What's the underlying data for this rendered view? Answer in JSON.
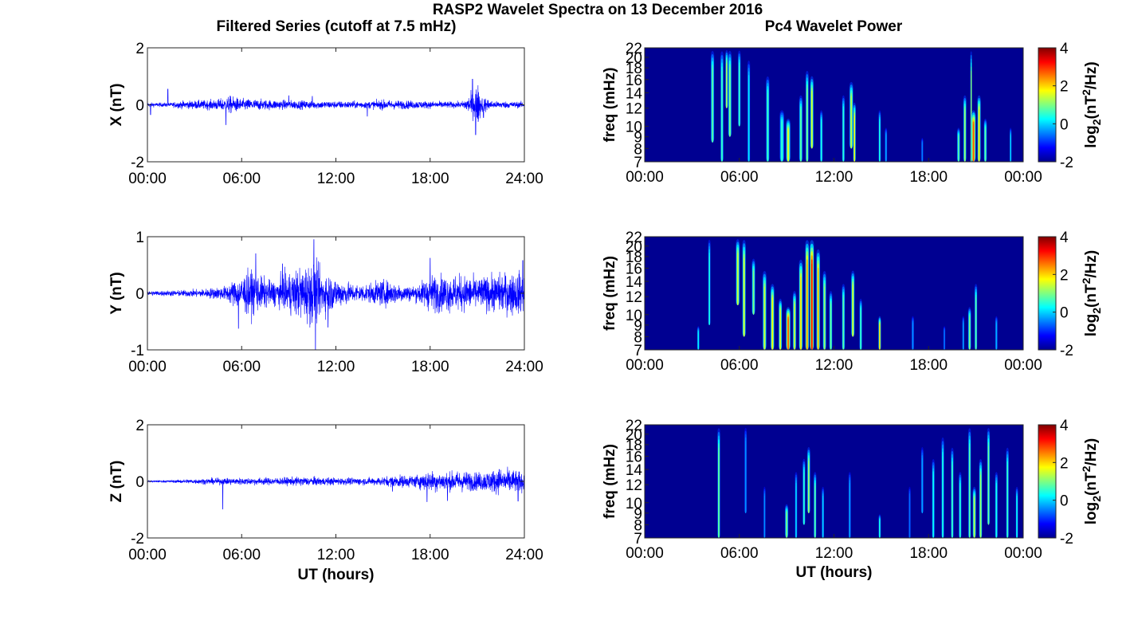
{
  "figure": {
    "title": "RASP2 Wavelet Spectra on 13 December 2016",
    "left_column_title": "Filtered Series (cutoff at 7.5 mHz)",
    "right_column_title": "Pc4 Wavelet Power"
  },
  "chart_data": [
    {
      "type": "line",
      "component": "X",
      "ylabel": "X (nT)",
      "xlabel": "",
      "xlim": [
        0,
        24
      ],
      "ylim": [
        -2,
        2
      ],
      "x_ticks": [
        "00:00",
        "06:00",
        "12:00",
        "18:00",
        "24:00"
      ],
      "y_ticks": [
        "-2",
        "0",
        "2"
      ],
      "color": "#0000ff",
      "envelope": [
        [
          0,
          0.07
        ],
        [
          1.5,
          0.07
        ],
        [
          2.0,
          0.12
        ],
        [
          4.0,
          0.16
        ],
        [
          5.0,
          0.22
        ],
        [
          5.2,
          0.3
        ],
        [
          6.0,
          0.2
        ],
        [
          8.0,
          0.16
        ],
        [
          10.0,
          0.14
        ],
        [
          12.0,
          0.12
        ],
        [
          14.0,
          0.12
        ],
        [
          15.0,
          0.16
        ],
        [
          18.0,
          0.12
        ],
        [
          20.0,
          0.1
        ],
        [
          20.8,
          0.45
        ],
        [
          21.0,
          0.75
        ],
        [
          21.3,
          0.3
        ],
        [
          22.0,
          0.12
        ],
        [
          24.0,
          0.1
        ]
      ],
      "spikes": [
        [
          0.2,
          -0.35
        ],
        [
          1.3,
          0.55
        ],
        [
          5.0,
          -0.7
        ],
        [
          9.0,
          0.32
        ],
        [
          10.5,
          0.3
        ],
        [
          14.0,
          -0.4
        ],
        [
          20.7,
          0.9
        ],
        [
          20.9,
          -1.05
        ],
        [
          21.4,
          -0.45
        ]
      ]
    },
    {
      "type": "line",
      "component": "Y",
      "ylabel": "Y (nT)",
      "xlabel": "",
      "xlim": [
        0,
        24
      ],
      "ylim": [
        -1,
        1
      ],
      "x_ticks": [
        "00:00",
        "06:00",
        "12:00",
        "18:00",
        "24:00"
      ],
      "y_ticks": [
        "-1",
        "0",
        "1"
      ],
      "color": "#0000ff",
      "envelope": [
        [
          0,
          0.04
        ],
        [
          2.0,
          0.05
        ],
        [
          3.5,
          0.07
        ],
        [
          5.0,
          0.12
        ],
        [
          5.5,
          0.22
        ],
        [
          6.0,
          0.3
        ],
        [
          6.5,
          0.38
        ],
        [
          7.0,
          0.3
        ],
        [
          8.0,
          0.2
        ],
        [
          9.0,
          0.35
        ],
        [
          10.0,
          0.45
        ],
        [
          10.5,
          0.55
        ],
        [
          11.0,
          0.4
        ],
        [
          12.0,
          0.25
        ],
        [
          13.0,
          0.16
        ],
        [
          14.0,
          0.15
        ],
        [
          15.0,
          0.22
        ],
        [
          16.0,
          0.16
        ],
        [
          17.0,
          0.12
        ],
        [
          18.0,
          0.3
        ],
        [
          19.0,
          0.3
        ],
        [
          20.0,
          0.3
        ],
        [
          21.0,
          0.26
        ],
        [
          22.0,
          0.3
        ],
        [
          23.0,
          0.35
        ],
        [
          24.0,
          0.35
        ]
      ],
      "spikes": [
        [
          5.8,
          -0.62
        ],
        [
          6.9,
          0.7
        ],
        [
          10.6,
          0.95
        ],
        [
          10.7,
          -1.0
        ],
        [
          8.6,
          0.52
        ],
        [
          11.5,
          -0.6
        ],
        [
          18.0,
          0.62
        ],
        [
          23.9,
          0.58
        ]
      ]
    },
    {
      "type": "line",
      "component": "Z",
      "ylabel": "Z (nT)",
      "xlabel": "UT (hours)",
      "xlim": [
        0,
        24
      ],
      "ylim": [
        -2,
        2
      ],
      "x_ticks": [
        "00:00",
        "06:00",
        "12:00",
        "18:00",
        "24:00"
      ],
      "y_ticks": [
        "-2",
        "0",
        "2"
      ],
      "color": "#0000ff",
      "envelope": [
        [
          0,
          0.03
        ],
        [
          1.5,
          0.04
        ],
        [
          2.5,
          0.07
        ],
        [
          4.0,
          0.1
        ],
        [
          6.0,
          0.12
        ],
        [
          8.0,
          0.12
        ],
        [
          10.0,
          0.15
        ],
        [
          12.0,
          0.12
        ],
        [
          14.0,
          0.12
        ],
        [
          15.0,
          0.15
        ],
        [
          16.0,
          0.2
        ],
        [
          17.0,
          0.2
        ],
        [
          18.0,
          0.35
        ],
        [
          19.0,
          0.3
        ],
        [
          20.0,
          0.35
        ],
        [
          21.0,
          0.3
        ],
        [
          22.0,
          0.38
        ],
        [
          23.0,
          0.42
        ],
        [
          24.0,
          0.32
        ]
      ],
      "spikes": [
        [
          4.8,
          -0.98
        ],
        [
          15.6,
          -0.35
        ],
        [
          17.8,
          -0.72
        ],
        [
          19.1,
          -0.68
        ],
        [
          22.4,
          0.42
        ],
        [
          23.6,
          -0.7
        ]
      ]
    },
    {
      "type": "heatmap",
      "component": "X",
      "ylabel": "freq (mHz)",
      "xlabel": "",
      "colorbar_label": "log2(nT²/Hz)",
      "xlim": [
        0,
        24
      ],
      "ylim": [
        7,
        22
      ],
      "clim": [
        -2,
        4
      ],
      "x_ticks": [
        "00:00",
        "06:00",
        "12:00",
        "18:00",
        "00:00"
      ],
      "y_ticks": [
        "7",
        "8",
        "9",
        "10",
        "12",
        "14",
        "16",
        "18",
        "20",
        "22"
      ],
      "colorbar_ticks": [
        "-2",
        "0",
        "2",
        "4"
      ],
      "background_value": -1.9,
      "bursts": [
        [
          4.3,
          8.5,
          22,
          0.8,
          0.09
        ],
        [
          4.9,
          7,
          22,
          0.6,
          0.08
        ],
        [
          5.4,
          9,
          22,
          1.0,
          0.09
        ],
        [
          5.2,
          12,
          22,
          1.3,
          0.07
        ],
        [
          6.0,
          10,
          22,
          0.6,
          0.07
        ],
        [
          6.6,
          7,
          20,
          0.1,
          0.07
        ],
        [
          7.8,
          7,
          17,
          0.6,
          0.09
        ],
        [
          8.7,
          7,
          12,
          0.5,
          0.12
        ],
        [
          9.1,
          7,
          11,
          1.6,
          0.12
        ],
        [
          9.9,
          7,
          14,
          0.8,
          0.09
        ],
        [
          10.3,
          7,
          18,
          1.0,
          0.08
        ],
        [
          10.6,
          8,
          17,
          1.6,
          0.09
        ],
        [
          11.2,
          7,
          12,
          0.4,
          0.07
        ],
        [
          12.6,
          7,
          14,
          0.5,
          0.07
        ],
        [
          13.1,
          8,
          16,
          1.4,
          0.1
        ],
        [
          13.3,
          7,
          13,
          1.8,
          0.07
        ],
        [
          14.9,
          7,
          12,
          0.4,
          0.06
        ],
        [
          15.3,
          7,
          10,
          -0.3,
          0.06
        ],
        [
          17.6,
          7,
          9,
          -0.5,
          0.05
        ],
        [
          19.9,
          7,
          10,
          0.8,
          0.08
        ],
        [
          20.3,
          7,
          14,
          1.2,
          0.08
        ],
        [
          20.7,
          7,
          22,
          1.0,
          0.04
        ],
        [
          20.85,
          7,
          12,
          2.8,
          0.12
        ],
        [
          21.2,
          7,
          14,
          2.0,
          0.09
        ],
        [
          21.6,
          7,
          11,
          0.8,
          0.08
        ],
        [
          23.2,
          7,
          10,
          0.0,
          0.05
        ]
      ]
    },
    {
      "type": "heatmap",
      "component": "Y",
      "ylabel": "freq (mHz)",
      "xlabel": "",
      "colorbar_label": "log2(nT²/Hz)",
      "xlim": [
        0,
        24
      ],
      "ylim": [
        7,
        22
      ],
      "clim": [
        -2,
        4
      ],
      "x_ticks": [
        "00:00",
        "06:00",
        "12:00",
        "18:00",
        "00:00"
      ],
      "y_ticks": [
        "7",
        "8",
        "9",
        "10",
        "12",
        "14",
        "16",
        "18",
        "20",
        "22"
      ],
      "colorbar_ticks": [
        "-2",
        "0",
        "2",
        "4"
      ],
      "background_value": -1.9,
      "bursts": [
        [
          3.4,
          7,
          9,
          0.2,
          0.06
        ],
        [
          4.1,
          9,
          22,
          0.4,
          0.06
        ],
        [
          5.9,
          11,
          22,
          1.5,
          0.1
        ],
        [
          6.3,
          8,
          22,
          1.6,
          0.09
        ],
        [
          6.9,
          10,
          18,
          1.0,
          0.09
        ],
        [
          7.6,
          7,
          16,
          1.5,
          0.1
        ],
        [
          8.1,
          7,
          14,
          1.8,
          0.1
        ],
        [
          8.6,
          7,
          12,
          1.6,
          0.09
        ],
        [
          9.1,
          7,
          11,
          2.8,
          0.12
        ],
        [
          9.5,
          7,
          13,
          1.5,
          0.09
        ],
        [
          9.9,
          7,
          18,
          2.0,
          0.1
        ],
        [
          10.3,
          7,
          22,
          2.4,
          0.1
        ],
        [
          10.6,
          7,
          22,
          3.3,
          0.11
        ],
        [
          11.0,
          7,
          20,
          2.2,
          0.1
        ],
        [
          11.4,
          7,
          16,
          1.2,
          0.09
        ],
        [
          11.8,
          7,
          13,
          0.9,
          0.08
        ],
        [
          12.6,
          7,
          14,
          0.8,
          0.08
        ],
        [
          13.2,
          8,
          16,
          1.6,
          0.09
        ],
        [
          13.7,
          7,
          12,
          0.6,
          0.07
        ],
        [
          14.9,
          7,
          10,
          2.0,
          0.07
        ],
        [
          17.0,
          7,
          10,
          -0.4,
          0.06
        ],
        [
          19.0,
          7,
          9,
          -0.6,
          0.05
        ],
        [
          20.2,
          7,
          10,
          -0.3,
          0.05
        ],
        [
          20.6,
          7,
          11,
          1.0,
          0.08
        ],
        [
          21.0,
          7,
          14,
          0.8,
          0.07
        ],
        [
          22.3,
          7,
          10,
          -0.2,
          0.06
        ]
      ]
    },
    {
      "type": "heatmap",
      "component": "Z",
      "ylabel": "freq (mHz)",
      "xlabel": "UT (hours)",
      "colorbar_label": "log2(nT²/Hz)",
      "xlim": [
        0,
        24
      ],
      "ylim": [
        7,
        22
      ],
      "clim": [
        -2,
        4
      ],
      "x_ticks": [
        "00:00",
        "06:00",
        "12:00",
        "18:00",
        "00:00"
      ],
      "y_ticks": [
        "7",
        "8",
        "9",
        "10",
        "12",
        "14",
        "16",
        "18",
        "20",
        "22"
      ],
      "colorbar_ticks": [
        "-2",
        "0",
        "2",
        "4"
      ],
      "background_value": -1.9,
      "bursts": [
        [
          4.7,
          7,
          22,
          0.9,
          0.07
        ],
        [
          6.4,
          9,
          22,
          -0.4,
          0.06
        ],
        [
          7.6,
          7,
          12,
          -0.4,
          0.05
        ],
        [
          9.0,
          7,
          10,
          1.0,
          0.09
        ],
        [
          9.6,
          7,
          14,
          0.0,
          0.06
        ],
        [
          10.1,
          8,
          16,
          0.5,
          0.07
        ],
        [
          10.4,
          9,
          18,
          1.2,
          0.08
        ],
        [
          10.8,
          7,
          14,
          0.8,
          0.07
        ],
        [
          11.3,
          7,
          12,
          0.0,
          0.06
        ],
        [
          13.0,
          7,
          14,
          -0.3,
          0.06
        ],
        [
          14.9,
          7,
          9,
          0.4,
          0.06
        ],
        [
          16.8,
          7,
          12,
          -0.6,
          0.05
        ],
        [
          17.6,
          9,
          18,
          -0.3,
          0.06
        ],
        [
          18.3,
          7,
          16,
          0.3,
          0.07
        ],
        [
          18.9,
          7,
          20,
          0.4,
          0.07
        ],
        [
          19.5,
          7,
          18,
          0.6,
          0.07
        ],
        [
          20.0,
          7,
          14,
          0.5,
          0.07
        ],
        [
          20.6,
          7,
          22,
          0.8,
          0.07
        ],
        [
          20.9,
          7,
          12,
          1.4,
          0.09
        ],
        [
          21.3,
          7,
          16,
          1.2,
          0.08
        ],
        [
          21.8,
          8,
          22,
          0.9,
          0.07
        ],
        [
          22.3,
          7,
          14,
          0.4,
          0.07
        ],
        [
          23.0,
          7,
          18,
          0.6,
          0.07
        ],
        [
          23.6,
          7,
          12,
          0.3,
          0.06
        ]
      ]
    }
  ]
}
